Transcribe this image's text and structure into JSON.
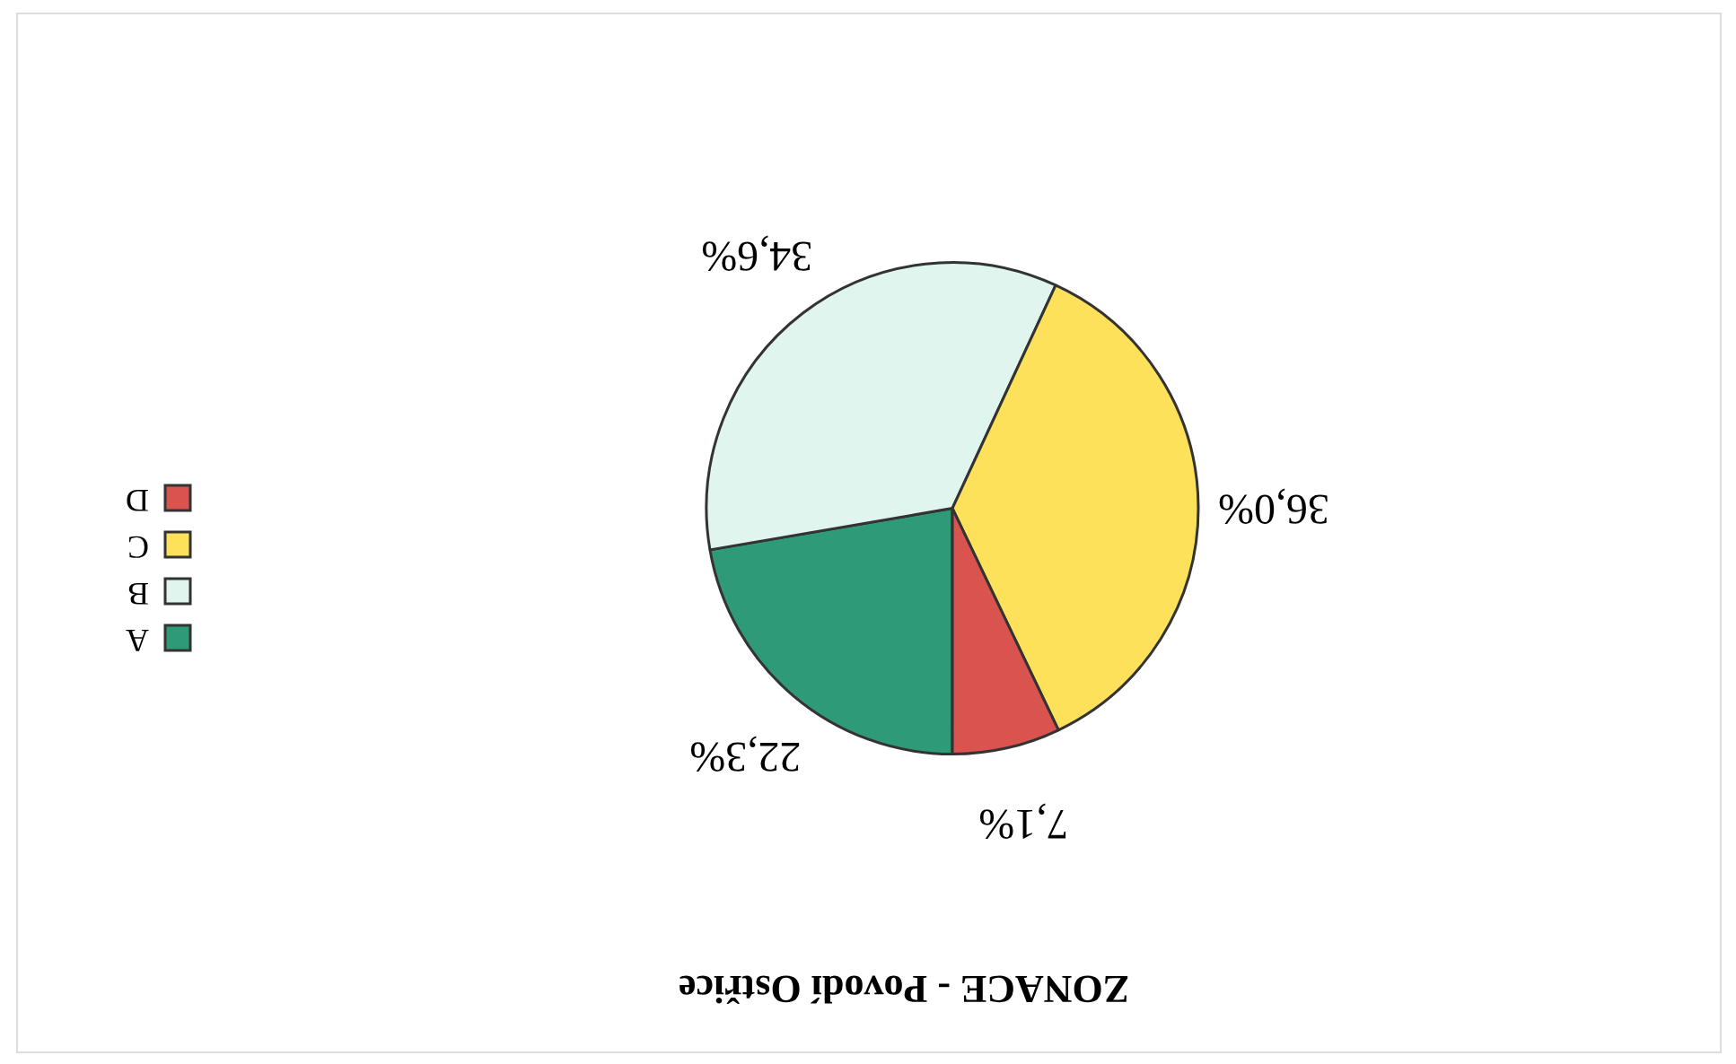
{
  "chart_data": {
    "type": "pie",
    "title": "ZONACE - Povodí Ostřice",
    "categories": [
      "A",
      "B",
      "C",
      "D"
    ],
    "values": [
      22.3,
      34.6,
      36.0,
      7.1
    ],
    "colors": [
      "#2e9a78",
      "#dff5ee",
      "#fde15a",
      "#d9534f"
    ],
    "value_labels": [
      "22,3%",
      "34,6%",
      "36,0%",
      "7,1%"
    ],
    "legend": "left"
  }
}
